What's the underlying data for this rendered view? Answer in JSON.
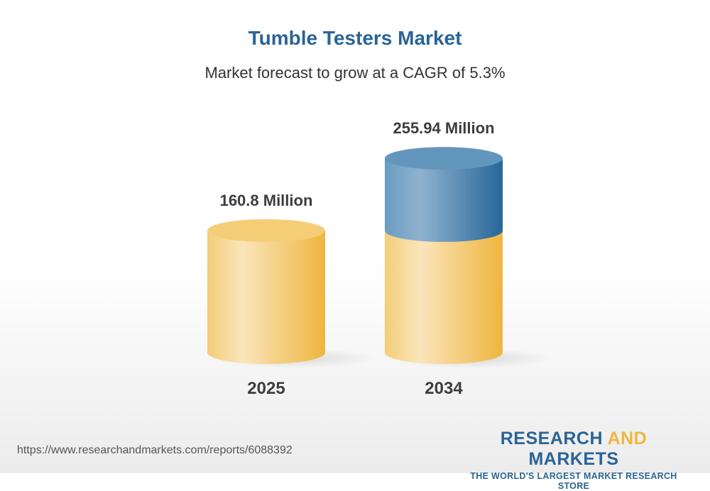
{
  "title": "Tumble Testers Market",
  "subtitle": "Market forecast to grow at a CAGR of 5.3%",
  "chart_data": {
    "type": "bar",
    "categories": [
      "2025",
      "2034"
    ],
    "values": [
      160.8,
      255.94
    ],
    "data_labels": [
      "160.8 Million",
      "255.94 Million"
    ],
    "unit": "Million",
    "colors": {
      "base": "#f0b73e",
      "growth": "#2a6496"
    }
  },
  "footer": {
    "url": "https://www.researchandmarkets.com/reports/6088392",
    "logo_part1": "RESEARCH ",
    "logo_part2": "AND",
    "logo_part3": " MARKETS",
    "logo_tagline": "THE WORLD'S LARGEST MARKET RESEARCH STORE"
  }
}
